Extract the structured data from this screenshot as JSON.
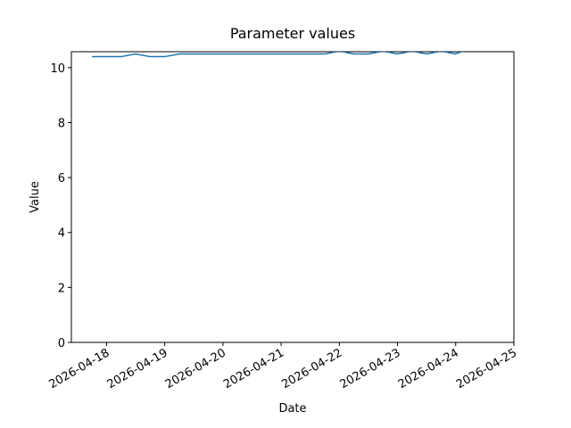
{
  "chart_data": {
    "type": "line",
    "title": "Parameter values",
    "x_label": "Date",
    "y_label": "Value",
    "x": [
      "2026-04-17T18:00",
      "2026-04-18T00:00",
      "2026-04-18T06:00",
      "2026-04-18T12:00",
      "2026-04-18T18:00",
      "2026-04-19T00:00",
      "2026-04-19T06:00",
      "2026-04-19T12:00",
      "2026-04-19T18:00",
      "2026-04-20T00:00",
      "2026-04-20T06:00",
      "2026-04-20T12:00",
      "2026-04-20T18:00",
      "2026-04-21T00:00",
      "2026-04-21T06:00",
      "2026-04-21T12:00",
      "2026-04-21T18:00",
      "2026-04-22T00:00",
      "2026-04-22T06:00",
      "2026-04-22T12:00",
      "2026-04-22T18:00",
      "2026-04-23T00:00",
      "2026-04-23T06:00",
      "2026-04-23T12:00",
      "2026-04-23T18:00",
      "2026-04-24T00:00",
      "2026-04-24T03:00"
    ],
    "series": [
      {
        "name": "Value",
        "color": "#1f77b4",
        "values": [
          10.4,
          10.4,
          10.4,
          10.5,
          10.4,
          10.4,
          10.5,
          10.5,
          10.5,
          10.5,
          10.5,
          10.5,
          10.5,
          10.5,
          10.5,
          10.5,
          10.5,
          10.6,
          10.5,
          10.5,
          10.6,
          10.5,
          10.6,
          10.5,
          10.6,
          10.5,
          10.6
        ]
      }
    ],
    "xlim": [
      "2026-04-17T09:30",
      "2026-04-25T00:00"
    ],
    "xticks": [
      "2026-04-18",
      "2026-04-19",
      "2026-04-20",
      "2026-04-21",
      "2026-04-22",
      "2026-04-23",
      "2026-04-24",
      "2026-04-25"
    ],
    "ylim": [
      0,
      10.58
    ],
    "yticks": [
      0,
      2,
      4,
      6,
      8,
      10
    ],
    "grid": false
  }
}
